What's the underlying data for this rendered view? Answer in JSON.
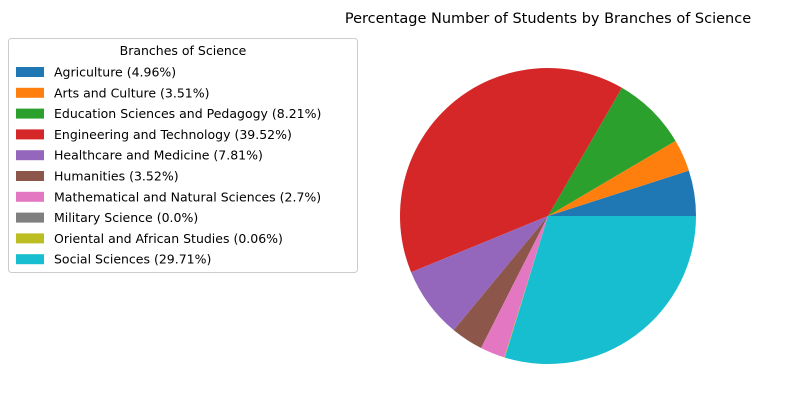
{
  "chart_data": {
    "type": "pie",
    "title": "Percentage Number of Students by Branches of Science",
    "legend": {
      "title": "Branches of Science",
      "placement": "top-left, outside plot"
    },
    "start_angle_deg": 0,
    "direction": "counterclockwise",
    "slices": [
      {
        "label": "Agriculture (4.96%)",
        "value": 4.96,
        "color": "#1f77b4"
      },
      {
        "label": "Arts and Culture (3.51%)",
        "value": 3.51,
        "color": "#ff7f0e"
      },
      {
        "label": "Education Sciences and Pedagogy (8.21%)",
        "value": 8.21,
        "color": "#2ca02c"
      },
      {
        "label": "Engineering and Technology (39.52%)",
        "value": 39.52,
        "color": "#d62728"
      },
      {
        "label": "Healthcare and Medicine (7.81%)",
        "value": 7.81,
        "color": "#9467bd"
      },
      {
        "label": "Humanities (3.52%)",
        "value": 3.52,
        "color": "#8c564b"
      },
      {
        "label": "Mathematical and Natural Sciences (2.7%)",
        "value": 2.7,
        "color": "#e377c2"
      },
      {
        "label": "Military Science (0.0%)",
        "value": 0.0,
        "color": "#7f7f7f"
      },
      {
        "label": "Oriental and African Studies (0.06%)",
        "value": 0.06,
        "color": "#bcbd22"
      },
      {
        "label": "Social Sciences (29.71%)",
        "value": 29.71,
        "color": "#17becf"
      }
    ]
  }
}
